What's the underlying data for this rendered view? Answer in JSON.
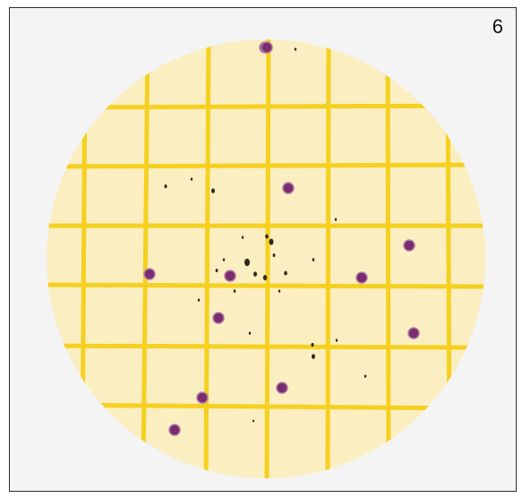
{
  "panel": {
    "number": "6"
  },
  "plate": {
    "background_color": "#fbeec0",
    "grid_color": "#f5d020",
    "colony_color": "#7a2d6e",
    "colony_count": 12,
    "debris_color": "#2f2a1e"
  }
}
